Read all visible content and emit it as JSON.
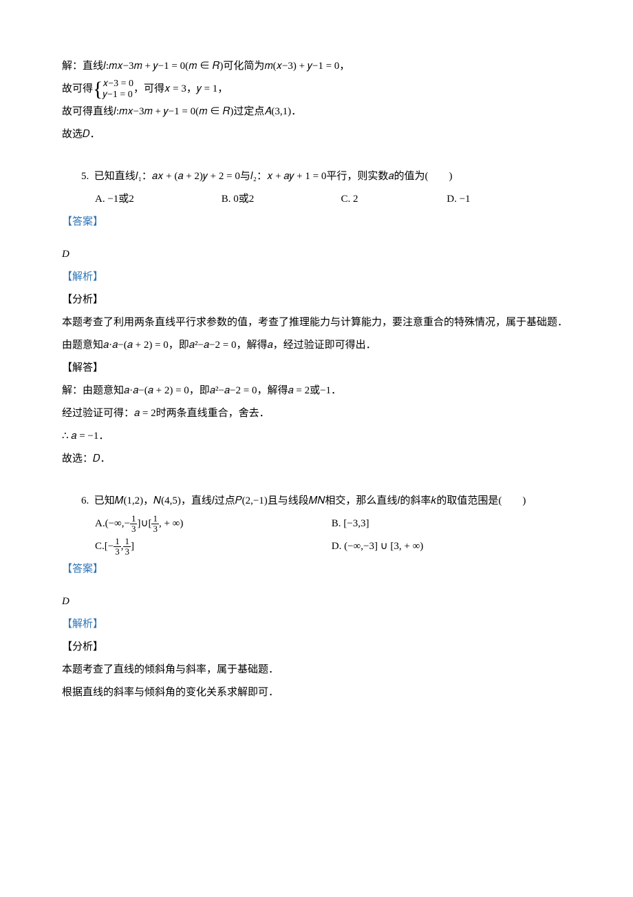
{
  "labels": {
    "answer": "【答案】",
    "analysis": "【解析】",
    "fenxi": "【分析】",
    "jieda": "【解答】"
  },
  "sol4": {
    "l1": "解：直线𝑙:𝑚𝑥−3𝑚 + 𝑦−1 = 0(𝑚 ∈ 𝑅)可化简为𝑚(𝑥−3) + 𝑦−1 = 0，",
    "l2a": "故可得",
    "l2_row1": "𝑥−3 = 0",
    "l2_row2": "𝑦−1 = 0",
    "l2b": "，可得𝑥 = 3，𝑦 = 1，",
    "l3": "故可得直线𝑙:𝑚𝑥−3𝑚 + 𝑦−1 = 0(𝑚 ∈ 𝑅)过定点𝐴(3,1)．",
    "l4": "故选𝐷．"
  },
  "q5": {
    "num": "5.",
    "stem": "已知直线𝑙₁：𝑎𝑥 + (𝑎 + 2)𝑦 + 2 = 0与𝑙₂：𝑥 + 𝑎𝑦 + 1 = 0平行，则实数𝑎的值为(　　)",
    "A": "A. −1或2",
    "B": "B. 0或2",
    "C": "C. 2",
    "D": "D. −1",
    "ans": "D",
    "fx1": "本题考查了利用两条直线平行求参数的值，考查了推理能力与计算能力，要注意重合的特殊情况，属于基础题．",
    "fx2": "由题意知𝑎·𝑎−(𝑎 + 2) = 0，即𝑎²−𝑎−2 = 0，解得𝑎，经过验证即可得出．",
    "jd1": "解：由题意知𝑎·𝑎−(𝑎 + 2) = 0，即𝑎²−𝑎−2 = 0，解得𝑎 = 2或−1．",
    "jd2": "经过验证可得：𝑎 = 2时两条直线重合，舍去．",
    "jd3": "∴ 𝑎 = −1．",
    "jd4": "故选：𝐷．"
  },
  "q6": {
    "num": "6.",
    "stem": "已知𝑀(1,2)，𝑁(4,5)，直线𝑙过点𝑃(2,−1)且与线段𝑀𝑁相交，那么直线𝑙的斜率𝑘的取值范围是(　　)",
    "A_pre": "A. ",
    "A_mid": " ∪ ",
    "B": "B. [−3,3]",
    "C_pre": "C. ",
    "D": "D. (−∞,−3] ∪ [3, + ∞)",
    "ans": "D",
    "fx1": "本题考查了直线的倾斜角与斜率，属于基础题．",
    "fx2": "根据直线的斜率与倾斜角的变化关系求解即可．"
  }
}
